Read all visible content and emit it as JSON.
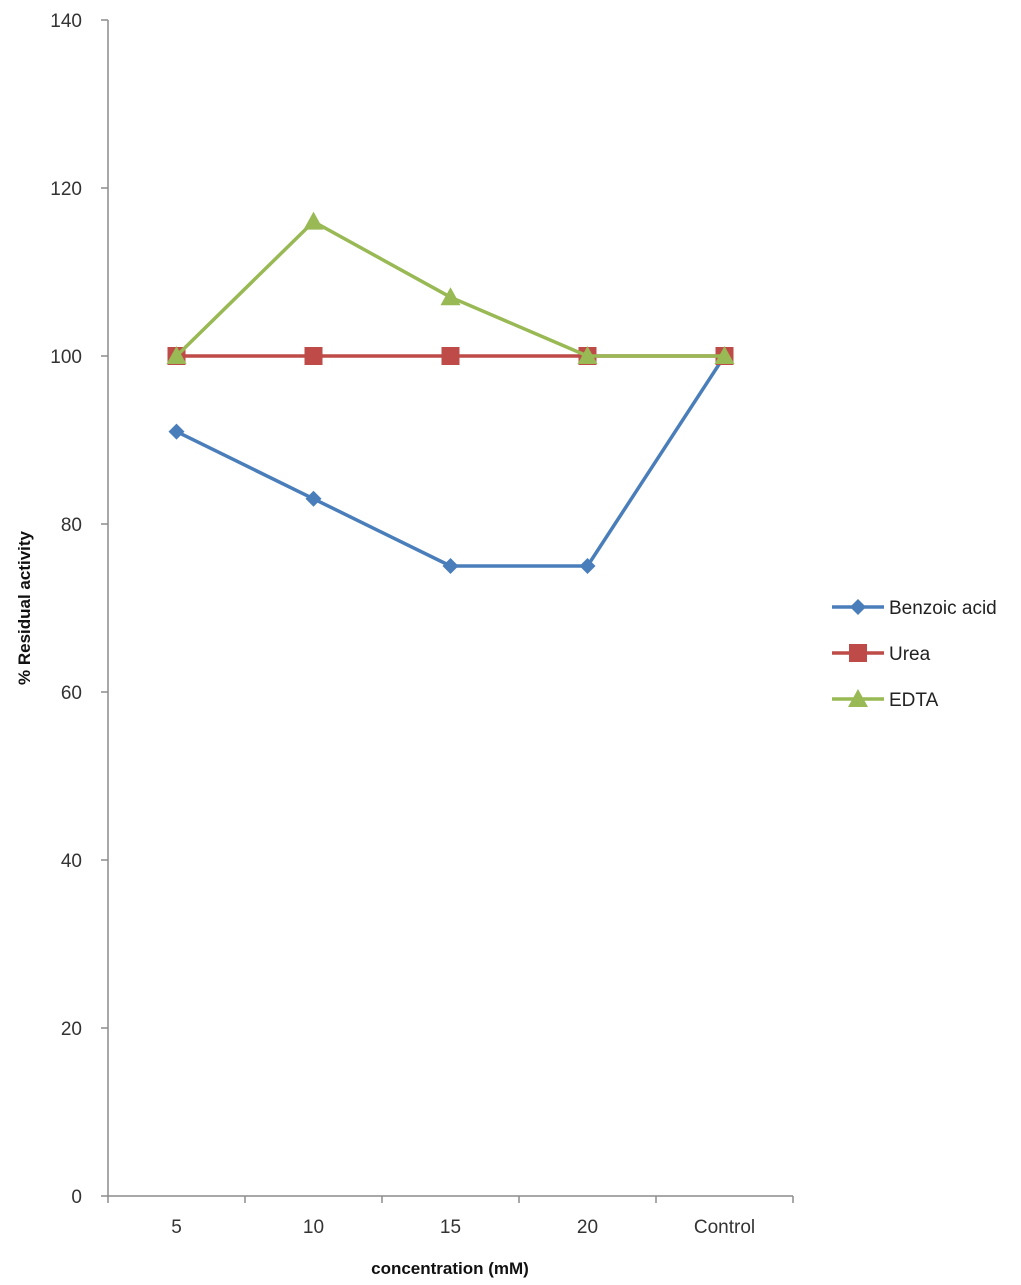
{
  "chart_data": {
    "type": "line",
    "title": "",
    "xlabel": "concentration (mM)",
    "ylabel": "% Residual activity",
    "categories": [
      "5",
      "10",
      "15",
      "20",
      "Control"
    ],
    "ylim": [
      0,
      140
    ],
    "yticks": [
      0,
      20,
      40,
      60,
      80,
      100,
      120,
      140
    ],
    "grid": false,
    "legend_position": "right",
    "series": [
      {
        "name": "Benzoic acid",
        "values": [
          91,
          83,
          75,
          75,
          100
        ],
        "color": "#4a7ebb",
        "marker": "diamond"
      },
      {
        "name": "Urea",
        "values": [
          100,
          100,
          100,
          100,
          100
        ],
        "color": "#be4b48",
        "marker": "square"
      },
      {
        "name": "EDTA",
        "values": [
          100,
          116,
          107,
          100,
          100
        ],
        "color": "#98b954",
        "marker": "triangle"
      }
    ]
  }
}
